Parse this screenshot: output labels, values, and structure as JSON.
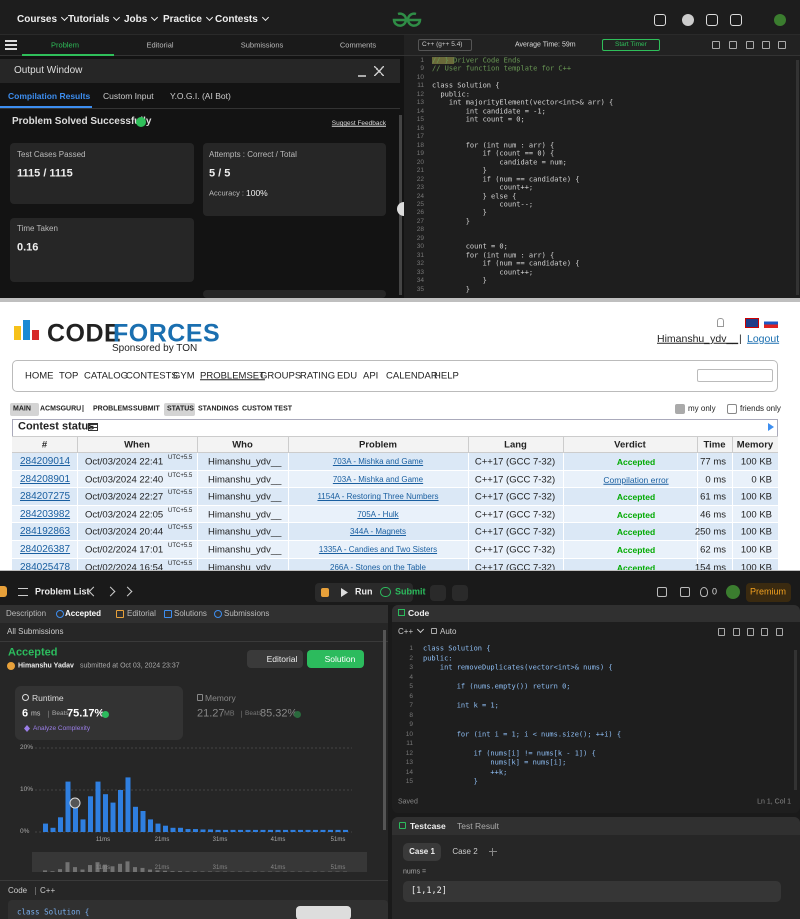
{
  "gfg": {
    "nav": [
      "Courses",
      "Tutorials",
      "Jobs",
      "Practice",
      "Contests"
    ],
    "tabs": [
      "Problem",
      "Editorial",
      "Submissions",
      "Comments"
    ],
    "output_title": "Output Window",
    "subtabs": [
      "Compilation Results",
      "Custom Input",
      "Y.O.G.I. (AI Bot)"
    ],
    "status": "Problem Solved Successfully",
    "feedback": "Suggest Feedback",
    "tests_label": "Test Cases Passed",
    "tests_value": "1115 / 1115",
    "attempts_label": "Attempts : Correct / Total",
    "attempts_value": "5 / 5",
    "accuracy_label": "Accuracy :",
    "accuracy_value": "100%",
    "time_label": "Time Taken",
    "time_value": "0.16",
    "language": "C++ (g++ 5.4)",
    "avg_time": "Average Time: 59m",
    "timer": "Start Timer",
    "code": [
      {
        "n": 1,
        "text": "// } Driver Code Ends"
      },
      {
        "n": 9,
        "text": "// User function template for C++"
      },
      {
        "n": 10
      },
      {
        "n": 11,
        "text": "class Solution {"
      },
      {
        "n": 12,
        "text": "  public:"
      },
      {
        "n": 13,
        "text": "    int majorityElement(vector<int>& arr) {"
      },
      {
        "n": 14,
        "text": "        int candidate = -1;"
      },
      {
        "n": 15,
        "text": "        int count = 0;"
      },
      {
        "n": 16
      },
      {
        "n": 17
      },
      {
        "n": 18,
        "text": "        for (int num : arr) {"
      },
      {
        "n": 19,
        "text": "            if (count == 0) {"
      },
      {
        "n": 20,
        "text": "                candidate = num;"
      },
      {
        "n": 21,
        "text": "            }"
      },
      {
        "n": 22,
        "text": "            if (num == candidate) {"
      },
      {
        "n": 23,
        "text": "                count++;"
      },
      {
        "n": 24,
        "text": "            } else {"
      },
      {
        "n": 25,
        "text": "                count--;"
      },
      {
        "n": 26,
        "text": "            }"
      },
      {
        "n": 27,
        "text": "        }"
      },
      {
        "n": 28
      },
      {
        "n": 29
      },
      {
        "n": 30,
        "text": "        count = 0;"
      },
      {
        "n": 31,
        "text": "        for (int num : arr) {"
      },
      {
        "n": 32,
        "text": "            if (num == candidate) {"
      },
      {
        "n": 33,
        "text": "                count++;"
      },
      {
        "n": 34,
        "text": "            }"
      },
      {
        "n": 35,
        "text": "        }"
      }
    ]
  },
  "codeforces": {
    "logo": [
      "CODE",
      "FORCES"
    ],
    "sponsor": "Sponsored by TON",
    "user": "Himanshu_ydv__",
    "separator": "|",
    "logout": "Logout",
    "menu": [
      "HOME",
      "TOP",
      "CATALOG",
      "CONTESTS",
      "GYM",
      "PROBLEMSET",
      "GROUPS",
      "RATING",
      "EDU",
      "API",
      "CALENDAR",
      "HELP"
    ],
    "submenu": [
      "MAIN",
      "ACMSGURU",
      "|",
      "PROBLEMS",
      "SUBMIT",
      "STATUS",
      "STANDINGS",
      "CUSTOM TEST"
    ],
    "filters": [
      "my only",
      "friends only"
    ],
    "status_title": "Contest status",
    "columns": [
      "#",
      "When",
      "Who",
      "Problem",
      "Lang",
      "Verdict",
      "Time",
      "Memory"
    ],
    "rows": [
      {
        "id": "284209014",
        "when": "Oct/03/2024 22:41",
        "tz": "UTC+5.5",
        "who": "Himanshu_ydv__",
        "problem": "703A - Mishka and Game",
        "lang": "C++17 (GCC 7-32)",
        "verdict": "Accepted",
        "time": "77 ms",
        "memory": "100 KB"
      },
      {
        "id": "284208901",
        "when": "Oct/03/2024 22:40",
        "tz": "UTC+5.5",
        "who": "Himanshu_ydv__",
        "problem": "703A - Mishka and Game",
        "lang": "C++17 (GCC 7-32)",
        "verdict": "Compilation error",
        "time": "0 ms",
        "memory": "0 KB"
      },
      {
        "id": "284207275",
        "when": "Oct/03/2024 22:27",
        "tz": "UTC+5.5",
        "who": "Himanshu_ydv__",
        "problem": "1154A - Restoring Three Numbers",
        "lang": "C++17 (GCC 7-32)",
        "verdict": "Accepted",
        "time": "61 ms",
        "memory": "100 KB"
      },
      {
        "id": "284203982",
        "when": "Oct/03/2024 22:05",
        "tz": "UTC+5.5",
        "who": "Himanshu_ydv__",
        "problem": "705A - Hulk",
        "lang": "C++17 (GCC 7-32)",
        "verdict": "Accepted",
        "time": "46 ms",
        "memory": "100 KB"
      },
      {
        "id": "284192863",
        "when": "Oct/03/2024 20:44",
        "tz": "UTC+5.5",
        "who": "Himanshu_ydv__",
        "problem": "344A - Magnets",
        "lang": "C++17 (GCC 7-32)",
        "verdict": "Accepted",
        "time": "250 ms",
        "memory": "100 KB"
      },
      {
        "id": "284026387",
        "when": "Oct/02/2024 17:01",
        "tz": "UTC+5.5",
        "who": "Himanshu_ydv__",
        "problem": "1335A - Candies and Two Sisters",
        "lang": "C++17 (GCC 7-32)",
        "verdict": "Accepted",
        "time": "62 ms",
        "memory": "100 KB"
      },
      {
        "id": "284025478",
        "when": "Oct/02/2024 16:54",
        "tz": "UTC+5.5",
        "who": "Himanshu_ydv__",
        "problem": "266A - Stones on the Table",
        "lang": "C++17 (GCC 7-32)",
        "verdict": "Accepted",
        "time": "154 ms",
        "memory": "100 KB"
      }
    ]
  },
  "leetcode": {
    "problem_list": "Problem List",
    "run": "Run",
    "submit": "Submit",
    "streak": "0",
    "premium": "Premium",
    "tabs": [
      "Description",
      "Accepted",
      "Editorial",
      "Solutions",
      "Submissions"
    ],
    "all": "All Submissions",
    "verdict": "Accepted",
    "user": "Himanshu Yadav",
    "submitted": "submitted at Oct 03, 2024 23:37",
    "buttons": [
      "Editorial",
      "Solution"
    ],
    "runtime": {
      "label": "Runtime",
      "value": "6",
      "unit": "ms",
      "beats_label": "Beats",
      "beats": "75.17%",
      "analyze": "Analyze Complexity"
    },
    "memory": {
      "label": "Memory",
      "value": "21.27",
      "unit": "MB",
      "beats_label": "Beats",
      "beats": "85.32%"
    },
    "chart": {
      "type": "bar",
      "color": "#2f7fe0",
      "ylim": [
        0,
        22
      ],
      "yticks": [
        {
          "value": 0,
          "label": "0%"
        },
        {
          "value": 10,
          "label": "10%"
        },
        {
          "value": 20,
          "label": "20%"
        }
      ],
      "x_labels": [
        "11ms",
        "21ms",
        "31ms",
        "41ms",
        "51ms"
      ],
      "values": [
        2,
        1,
        3.5,
        12,
        6,
        3,
        8.5,
        12,
        9,
        7,
        10,
        13,
        6,
        5,
        3,
        2,
        1.5,
        1,
        1,
        0.7,
        0.7,
        0.6,
        0.6,
        0.5,
        0.5,
        0.5,
        0.5,
        0.5,
        0.5,
        0.5,
        0.5,
        0.5,
        0.5,
        0.5,
        0.5,
        0.5,
        0.5,
        0.5,
        0.5,
        0.5,
        0.5
      ]
    },
    "code_label": "Code",
    "lang": "C++",
    "code_preview": "class Solution {",
    "editor": {
      "title": "Code",
      "lang": "C++",
      "mode": "Auto",
      "lines": [
        {
          "n": 1,
          "text": "class Solution {"
        },
        {
          "n": 2,
          "text": "public:"
        },
        {
          "n": 3,
          "text": "    int removeDuplicates(vector<int>& nums) {"
        },
        {
          "n": 4
        },
        {
          "n": 5,
          "text": "        if (nums.empty()) return 0;"
        },
        {
          "n": 6
        },
        {
          "n": 7,
          "text": "        int k = 1;"
        },
        {
          "n": 8
        },
        {
          "n": 9
        },
        {
          "n": 10,
          "text": "        for (int i = 1; i < nums.size(); ++i) {"
        },
        {
          "n": 11
        },
        {
          "n": 12,
          "text": "            if (nums[i] != nums[k - 1]) {"
        },
        {
          "n": 13,
          "text": "                nums[k] = nums[i];"
        },
        {
          "n": 14,
          "text": "                ++k;"
        },
        {
          "n": 15,
          "text": "            }"
        }
      ],
      "saved": "Saved",
      "cursor": "Ln 1, Col 1"
    },
    "testcase": {
      "tabs": [
        "Testcase",
        "Test Result"
      ],
      "cases": [
        "Case 1",
        "Case 2"
      ],
      "var": "nums =",
      "input": "[1,1,2]"
    }
  }
}
